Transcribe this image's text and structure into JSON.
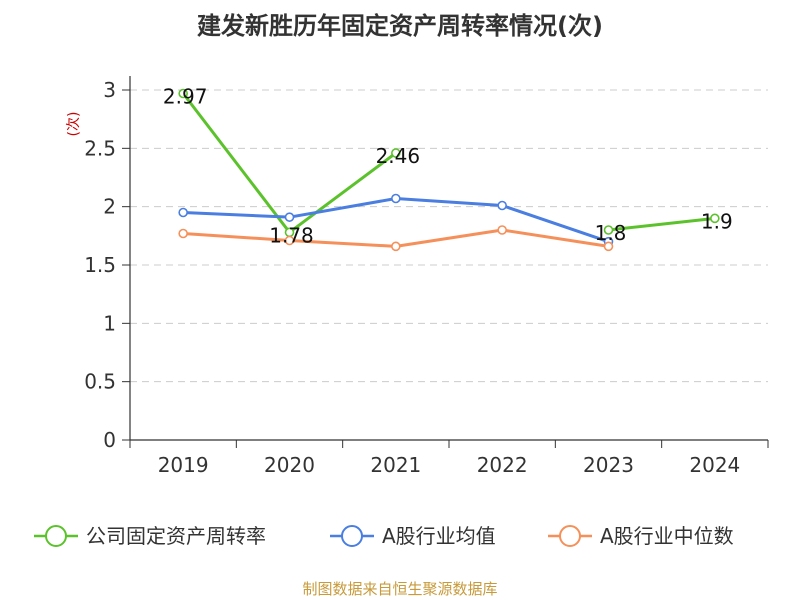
{
  "chart_data": {
    "type": "line",
    "title": "建发新胜历年固定资产周转率情况(次)",
    "ylabel": "(次)",
    "xlabel": "",
    "categories": [
      "2019",
      "2020",
      "2021",
      "2022",
      "2023",
      "2024"
    ],
    "ylim": [
      0,
      3
    ],
    "yticks": [
      "0",
      "0.5",
      "1",
      "1.5",
      "2",
      "2.5",
      "3"
    ],
    "ytick_values": [
      0,
      0.5,
      1,
      1.5,
      2,
      2.5,
      3
    ],
    "grid": true,
    "legend_position": "bottom",
    "series": [
      {
        "name": "公司固定资产周转率",
        "color": "#5cc22c",
        "values": [
          2.97,
          1.78,
          2.46,
          null,
          1.8,
          1.9
        ],
        "labels": [
          "2.97",
          "1.78",
          "2.46",
          "",
          "1.8",
          "1.9"
        ]
      },
      {
        "name": "A股行业均值",
        "color": "#4a7ee0",
        "values": [
          1.95,
          1.91,
          2.07,
          2.01,
          1.7,
          null
        ],
        "labels": [
          "",
          "",
          "",
          "",
          "",
          ""
        ]
      },
      {
        "name": "A股行业中位数",
        "color": "#f5905a",
        "values": [
          1.77,
          1.71,
          1.66,
          1.8,
          1.66,
          null
        ],
        "labels": [
          "",
          "",
          "",
          "",
          "",
          ""
        ]
      }
    ]
  },
  "source_note": "制图数据来自恒生聚源数据库"
}
